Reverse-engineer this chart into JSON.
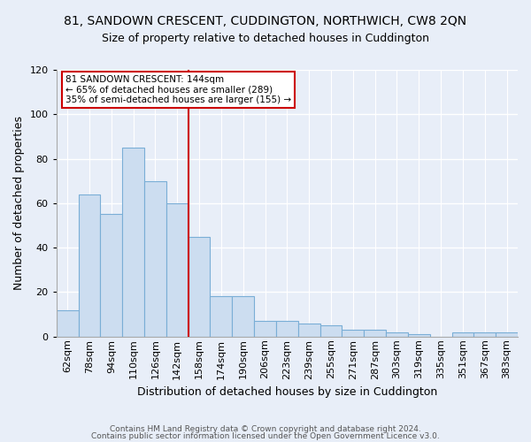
{
  "title1": "81, SANDOWN CRESCENT, CUDDINGTON, NORTHWICH, CW8 2QN",
  "title2": "Size of property relative to detached houses in Cuddington",
  "xlabel": "Distribution of detached houses by size in Cuddington",
  "ylabel": "Number of detached properties",
  "categories": [
    "62sqm",
    "78sqm",
    "94sqm",
    "110sqm",
    "126sqm",
    "142sqm",
    "158sqm",
    "174sqm",
    "190sqm",
    "206sqm",
    "223sqm",
    "239sqm",
    "255sqm",
    "271sqm",
    "287sqm",
    "303sqm",
    "319sqm",
    "335sqm",
    "351sqm",
    "367sqm",
    "383sqm"
  ],
  "values": [
    12,
    64,
    55,
    85,
    70,
    60,
    45,
    18,
    18,
    7,
    7,
    6,
    5,
    3,
    3,
    2,
    1,
    0,
    2,
    2,
    2
  ],
  "bar_color": "#ccddf0",
  "bar_edge_color": "#7aaed6",
  "vline_x_index": 5.5,
  "vline_color": "#cc0000",
  "ylim": [
    0,
    120
  ],
  "yticks": [
    0,
    20,
    40,
    60,
    80,
    100,
    120
  ],
  "annotation_text": "81 SANDOWN CRESCENT: 144sqm\n← 65% of detached houses are smaller (289)\n35% of semi-detached houses are larger (155) →",
  "annotation_box_color": "#ffffff",
  "annotation_box_edge": "#cc0000",
  "footer1": "Contains HM Land Registry data © Crown copyright and database right 2024.",
  "footer2": "Contains public sector information licensed under the Open Government Licence v3.0.",
  "background_color": "#e8eef8",
  "plot_background_color": "#e8eef8",
  "grid_color": "#ffffff",
  "title1_fontsize": 10,
  "title2_fontsize": 9,
  "xlabel_fontsize": 9,
  "ylabel_fontsize": 9,
  "tick_fontsize": 8,
  "footer_fontsize": 6.5
}
